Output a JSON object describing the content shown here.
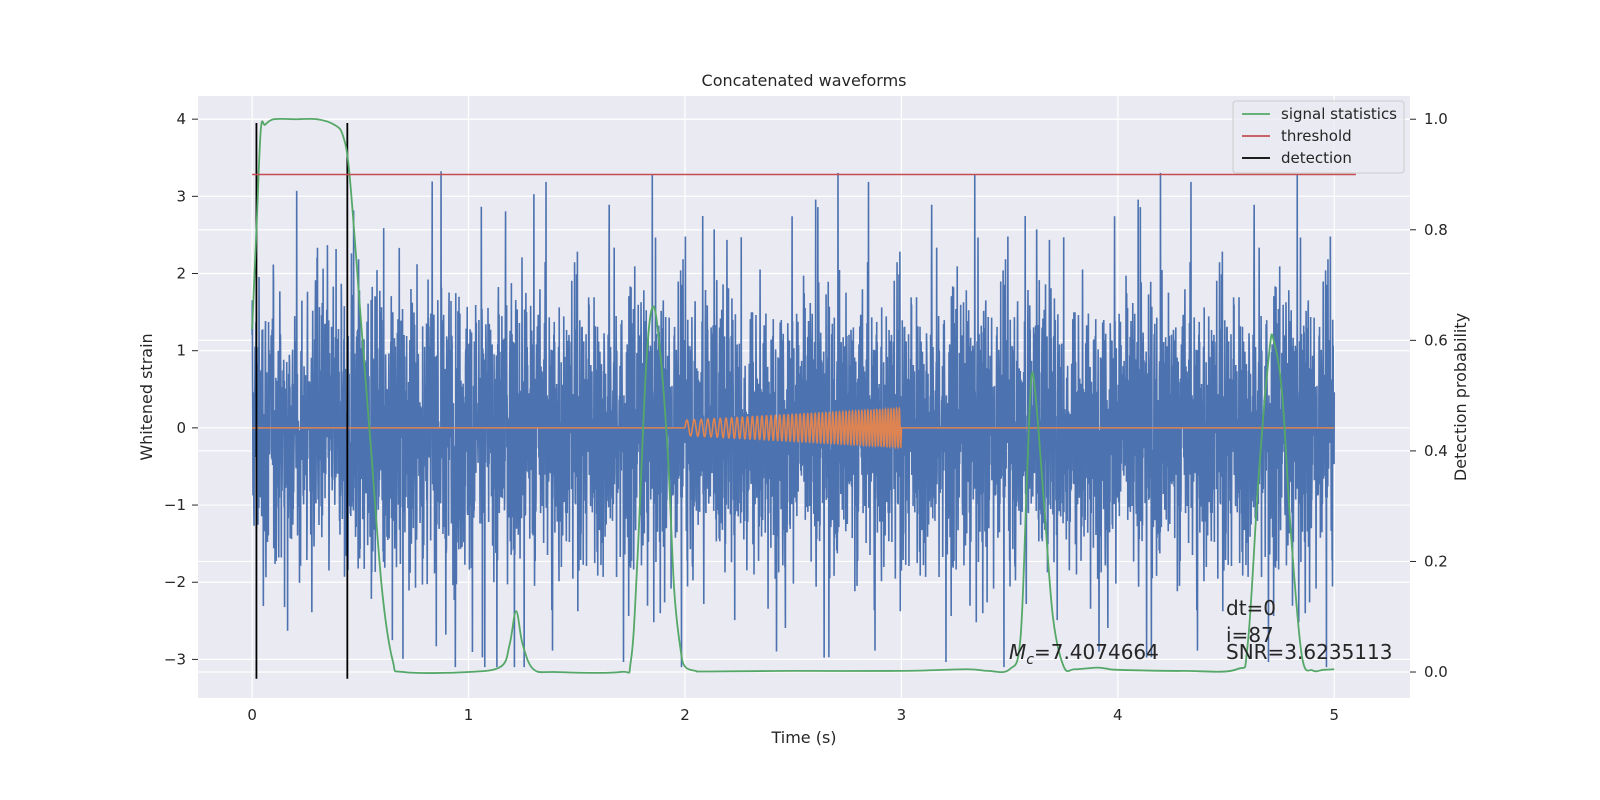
{
  "chart_data": {
    "type": "line",
    "title": "Concatenated waveforms",
    "xlabel": "Time (s)",
    "ylabel": "Whitened strain",
    "y2label": "Detection probability",
    "xlim": [
      -0.25,
      5.35
    ],
    "ylim": [
      -3.5,
      4.3
    ],
    "y2lim": [
      -0.047,
      1.042
    ],
    "x_ticks": [
      "0",
      "1",
      "2",
      "3",
      "4",
      "5"
    ],
    "y_ticks": [
      "−3",
      "−2",
      "−1",
      "0",
      "1",
      "2",
      "3",
      "4"
    ],
    "y2_ticks": [
      "0.0",
      "0.2",
      "0.4",
      "0.6",
      "0.8",
      "1.0"
    ],
    "grid": true,
    "legend_position": "top-right",
    "colors": {
      "background": "#eaeaf2",
      "grid": "#ffffff",
      "noise": "#4c72b0",
      "template": "#dd8452",
      "statistics": "#55a868",
      "threshold": "#c44e52",
      "detection": "#000000"
    },
    "series": [
      {
        "name": "",
        "axis": "left",
        "description_visible": "noisy whitened strain, roughly within -2.5..2.7 with spikes to about 3.9",
        "x_range": [
          0,
          5
        ]
      },
      {
        "name": "",
        "axis": "left",
        "chirp": {
          "start": 2.0,
          "end": 3.0,
          "amp_start": 0.1,
          "amp_end": 0.25
        }
      },
      {
        "name": "signal statistics",
        "axis": "right",
        "x": [
          0.0,
          0.02,
          0.04,
          0.06,
          0.1,
          0.2,
          0.3,
          0.38,
          0.42,
          0.45,
          0.5,
          0.55,
          0.6,
          0.65,
          0.7,
          1.0,
          1.15,
          1.19,
          1.22,
          1.25,
          1.3,
          1.4,
          1.7,
          1.75,
          1.78,
          1.82,
          1.85,
          1.88,
          1.92,
          1.95,
          1.98,
          2.0,
          2.05,
          2.1,
          2.5,
          3.0,
          3.3,
          3.4,
          3.5,
          3.55,
          3.58,
          3.6,
          3.62,
          3.66,
          3.7,
          3.75,
          3.8,
          3.9,
          3.95,
          4.0,
          4.3,
          4.55,
          4.6,
          4.65,
          4.7,
          4.72,
          4.76,
          4.8,
          4.85,
          4.9,
          4.95,
          5.0
        ],
        "y": [
          0.62,
          0.8,
          0.98,
          0.99,
          1.0,
          1.0,
          1.0,
          0.99,
          0.97,
          0.9,
          0.65,
          0.4,
          0.15,
          0.02,
          0.0,
          0.0,
          0.01,
          0.05,
          0.11,
          0.05,
          0.005,
          0.0,
          0.0,
          0.02,
          0.2,
          0.55,
          0.66,
          0.6,
          0.4,
          0.15,
          0.04,
          0.01,
          0.002,
          0.001,
          0.002,
          0.002,
          0.005,
          0.002,
          0.005,
          0.06,
          0.35,
          0.53,
          0.5,
          0.3,
          0.1,
          0.01,
          0.005,
          0.008,
          0.006,
          0.004,
          0.002,
          0.005,
          0.05,
          0.35,
          0.58,
          0.6,
          0.5,
          0.25,
          0.03,
          0.003,
          0.004,
          0.005
        ]
      },
      {
        "name": "threshold",
        "axis": "right",
        "x": [
          0.0,
          5.1
        ],
        "y": [
          0.9,
          0.9
        ]
      },
      {
        "name": "detection",
        "axis": "left",
        "vlines": [
          0.02,
          0.44
        ],
        "ymin": -3.25,
        "ymax": 3.95
      }
    ],
    "annotations": {
      "dt": "dt=0",
      "i": "i=87",
      "snr": "SNR=3.6235113",
      "mc_symbol": "M",
      "mc_sub": "c",
      "mc_value": "=7.4074664"
    }
  }
}
